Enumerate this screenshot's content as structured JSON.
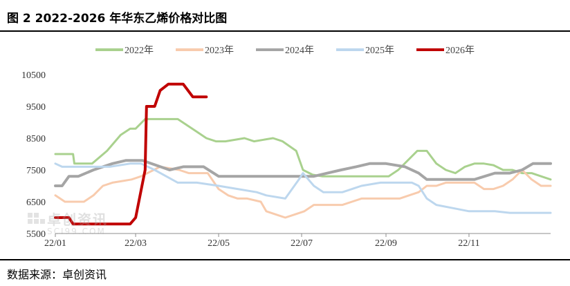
{
  "title": "图 2 2022-2026 年华东乙烯价格对比图",
  "source": "数据来源：卓创资讯",
  "watermark": {
    "main": "卓创资讯",
    "sub": "SCI99.COM"
  },
  "chart_data": {
    "type": "line",
    "title": "图 2 2022-2026 年华东乙烯价格对比图",
    "xlabel": "",
    "ylabel": "",
    "x_ticks": [
      "22/01",
      "22/03",
      "22/05",
      "22/07",
      "22/09",
      "22/11"
    ],
    "y_ticks": [
      5500,
      6500,
      7500,
      8500,
      9500,
      10500
    ],
    "ylim": [
      5500,
      10500
    ],
    "xlim": [
      "01/01",
      "12/31"
    ],
    "grid": false,
    "legend_position": "top",
    "series": [
      {
        "name": "2022年",
        "color": "#a9d18e",
        "width": 3,
        "x": [
          "01/01",
          "01/14",
          "01/15",
          "01/28",
          "02/08",
          "02/18",
          "02/25",
          "03/01",
          "03/08",
          "04/01",
          "04/15",
          "04/22",
          "04/29",
          "05/06",
          "05/20",
          "05/27",
          "06/03",
          "06/10",
          "06/17",
          "06/27",
          "07/02",
          "07/09",
          "07/16",
          "07/23",
          "07/30",
          "08/06",
          "08/13",
          "08/20",
          "08/27",
          "09/03",
          "09/10",
          "09/17",
          "09/24",
          "10/01",
          "10/08",
          "10/15",
          "10/22",
          "10/29",
          "11/05",
          "11/12",
          "11/19",
          "11/26",
          "12/03",
          "12/10",
          "12/17",
          "12/24",
          "12/31"
        ],
        "y": [
          8000,
          8000,
          7700,
          7700,
          8100,
          8600,
          8800,
          8800,
          9100,
          9100,
          8700,
          8500,
          8400,
          8400,
          8500,
          8400,
          8450,
          8500,
          8400,
          8100,
          7500,
          7350,
          7300,
          7300,
          7300,
          7300,
          7300,
          7300,
          7300,
          7300,
          7500,
          7800,
          8100,
          8100,
          7700,
          7500,
          7400,
          7600,
          7700,
          7700,
          7650,
          7500,
          7500,
          7400,
          7400,
          7300,
          7200
        ]
      },
      {
        "name": "2023年",
        "color": "#f8cbad",
        "width": 3,
        "x": [
          "01/01",
          "01/08",
          "01/15",
          "01/22",
          "01/29",
          "02/05",
          "02/12",
          "02/19",
          "02/26",
          "03/05",
          "03/19",
          "04/02",
          "04/09",
          "04/16",
          "04/23",
          "05/01",
          "05/08",
          "05/15",
          "05/22",
          "06/01",
          "06/05",
          "06/12",
          "06/19",
          "06/26",
          "07/03",
          "07/10",
          "07/17",
          "07/24",
          "07/31",
          "08/07",
          "08/14",
          "08/21",
          "08/28",
          "09/04",
          "09/11",
          "09/18",
          "09/25",
          "10/01",
          "10/08",
          "10/15",
          "10/22",
          "10/29",
          "11/05",
          "11/12",
          "11/19",
          "11/26",
          "12/03",
          "12/10",
          "12/17",
          "12/24",
          "12/31"
        ],
        "y": [
          6700,
          6500,
          6500,
          6500,
          6700,
          7000,
          7100,
          7150,
          7200,
          7300,
          7600,
          7500,
          7400,
          7400,
          7400,
          6900,
          6700,
          6600,
          6600,
          6500,
          6200,
          6100,
          6000,
          6100,
          6200,
          6400,
          6400,
          6400,
          6400,
          6500,
          6600,
          6600,
          6600,
          6600,
          6600,
          6700,
          6800,
          7000,
          7000,
          7100,
          7100,
          7100,
          7100,
          6900,
          6900,
          7000,
          7200,
          7500,
          7200,
          7000,
          7000
        ]
      },
      {
        "name": "2024年",
        "color": "#a5a5a5",
        "width": 4,
        "x": [
          "01/01",
          "01/06",
          "01/11",
          "01/18",
          "01/29",
          "02/12",
          "02/22",
          "03/06",
          "03/26",
          "04/05",
          "04/20",
          "05/01",
          "05/08",
          "05/22",
          "06/05",
          "06/19",
          "07/03",
          "07/10",
          "07/20",
          "07/30",
          "08/10",
          "08/20",
          "09/01",
          "09/15",
          "09/25",
          "10/01",
          "10/20",
          "11/05",
          "11/20",
          "12/01",
          "12/10",
          "12/18",
          "12/31"
        ],
        "y": [
          7000,
          7000,
          7300,
          7300,
          7500,
          7700,
          7800,
          7800,
          7500,
          7600,
          7600,
          7300,
          7300,
          7300,
          7300,
          7300,
          7300,
          7300,
          7400,
          7500,
          7600,
          7700,
          7700,
          7600,
          7400,
          7200,
          7200,
          7200,
          7400,
          7400,
          7500,
          7700,
          7700
        ]
      },
      {
        "name": "2025年",
        "color": "#bdd7ee",
        "width": 3,
        "x": [
          "01/01",
          "01/06",
          "02/10",
          "02/25",
          "03/05",
          "03/15",
          "04/01",
          "04/15",
          "05/01",
          "05/15",
          "05/29",
          "06/05",
          "06/19",
          "06/29",
          "07/02",
          "07/10",
          "07/17",
          "07/31",
          "08/14",
          "08/28",
          "09/10",
          "09/20",
          "09/25",
          "10/01",
          "10/08",
          "10/20",
          "11/01",
          "11/20",
          "12/01",
          "12/31"
        ],
        "y": [
          7700,
          7600,
          7600,
          7700,
          7700,
          7500,
          7100,
          7100,
          7000,
          6900,
          6800,
          6700,
          6600,
          7200,
          7400,
          7000,
          6800,
          6800,
          7000,
          7100,
          7100,
          7100,
          7000,
          6600,
          6400,
          6300,
          6200,
          6200,
          6150,
          6150
        ]
      },
      {
        "name": "2026年",
        "color": "#c00000",
        "width": 4,
        "x": [
          "01/01",
          "01/11",
          "01/14",
          "01/21",
          "02/07",
          "02/25",
          "03/01",
          "03/08",
          "03/09",
          "03/15",
          "03/19",
          "03/25",
          "04/05",
          "04/12",
          "04/15",
          "04/22"
        ],
        "y": [
          6000,
          6000,
          5800,
          5800,
          5800,
          5800,
          6000,
          7500,
          9500,
          9500,
          10000,
          10200,
          10200,
          9800,
          9800,
          9800
        ]
      }
    ]
  }
}
